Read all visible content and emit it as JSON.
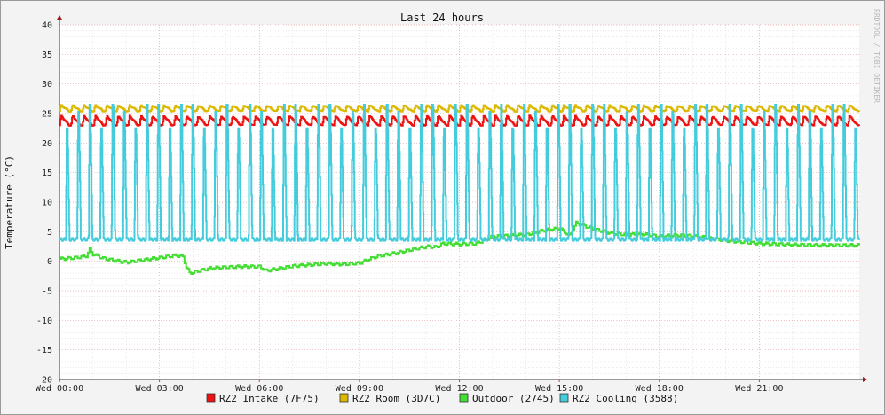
{
  "chart_data": {
    "type": "line",
    "title": "Last 24 hours",
    "xlabel": "",
    "ylabel": "Temperature (°C)",
    "watermark": "RRDTOOL / TOBI OETIKER",
    "ylim": [
      -20,
      40
    ],
    "yticks": [
      "40",
      "35",
      "30",
      "25",
      "20",
      "15",
      "10",
      "5",
      "0",
      "-5",
      "-10",
      "-15",
      "-20"
    ],
    "xticks": [
      "Wed 00:00",
      "Wed 03:00",
      "Wed 06:00",
      "Wed 09:00",
      "Wed 12:00",
      "Wed 15:00",
      "Wed 18:00",
      "Wed 21:00"
    ],
    "xlim_hours": [
      0,
      24
    ],
    "grid": true,
    "legend_position": "bottom-center",
    "series": [
      {
        "name": "RZ2 Intake (7F75)",
        "color": "#ee1111",
        "pattern": "sawtooth",
        "base": 23,
        "peak": 24.6,
        "cycles": 70
      },
      {
        "name": "RZ2 Room (3D7C)",
        "color": "#ddb800",
        "pattern": "sawtooth",
        "base": 25.4,
        "peak": 26.4,
        "cycles": 70
      },
      {
        "name": "Outdoor (2745)",
        "color": "#44dd33",
        "pattern": "profile",
        "points": [
          [
            0.0,
            0.4
          ],
          [
            0.5,
            0.6
          ],
          [
            0.8,
            0.9
          ],
          [
            0.9,
            2.0
          ],
          [
            1.0,
            1.2
          ],
          [
            1.3,
            0.5
          ],
          [
            2.0,
            -0.2
          ],
          [
            2.6,
            0.3
          ],
          [
            3.0,
            0.6
          ],
          [
            3.5,
            1.0
          ],
          [
            3.7,
            0.8
          ],
          [
            3.8,
            -1.0
          ],
          [
            3.9,
            -2.0
          ],
          [
            4.5,
            -1.2
          ],
          [
            5.0,
            -1.0
          ],
          [
            5.5,
            -0.9
          ],
          [
            6.0,
            -0.9
          ],
          [
            6.2,
            -1.6
          ],
          [
            7.0,
            -0.8
          ],
          [
            8.0,
            -0.4
          ],
          [
            8.5,
            -0.5
          ],
          [
            9.0,
            -0.3
          ],
          [
            9.5,
            0.8
          ],
          [
            10.0,
            1.3
          ],
          [
            10.5,
            1.9
          ],
          [
            11.0,
            2.5
          ],
          [
            11.3,
            2.4
          ],
          [
            11.5,
            3.0
          ],
          [
            12.0,
            2.9
          ],
          [
            12.5,
            3.0
          ],
          [
            13.0,
            4.2
          ],
          [
            14.0,
            4.5
          ],
          [
            14.5,
            5.2
          ],
          [
            15.0,
            5.6
          ],
          [
            15.3,
            4.3
          ],
          [
            15.5,
            6.5
          ],
          [
            16.0,
            5.5
          ],
          [
            16.5,
            4.8
          ],
          [
            17.0,
            4.5
          ],
          [
            17.5,
            4.6
          ],
          [
            18.0,
            4.2
          ],
          [
            18.5,
            4.4
          ],
          [
            19.0,
            4.3
          ],
          [
            20.0,
            3.5
          ],
          [
            21.0,
            3.0
          ],
          [
            22.0,
            2.8
          ],
          [
            23.0,
            2.7
          ],
          [
            24.0,
            2.7
          ]
        ]
      },
      {
        "name": "RZ2 Cooling (3588)",
        "color": "#44ccdd",
        "pattern": "spikes",
        "base": 3.7,
        "peak": 26.5,
        "cycles": 70
      }
    ]
  }
}
